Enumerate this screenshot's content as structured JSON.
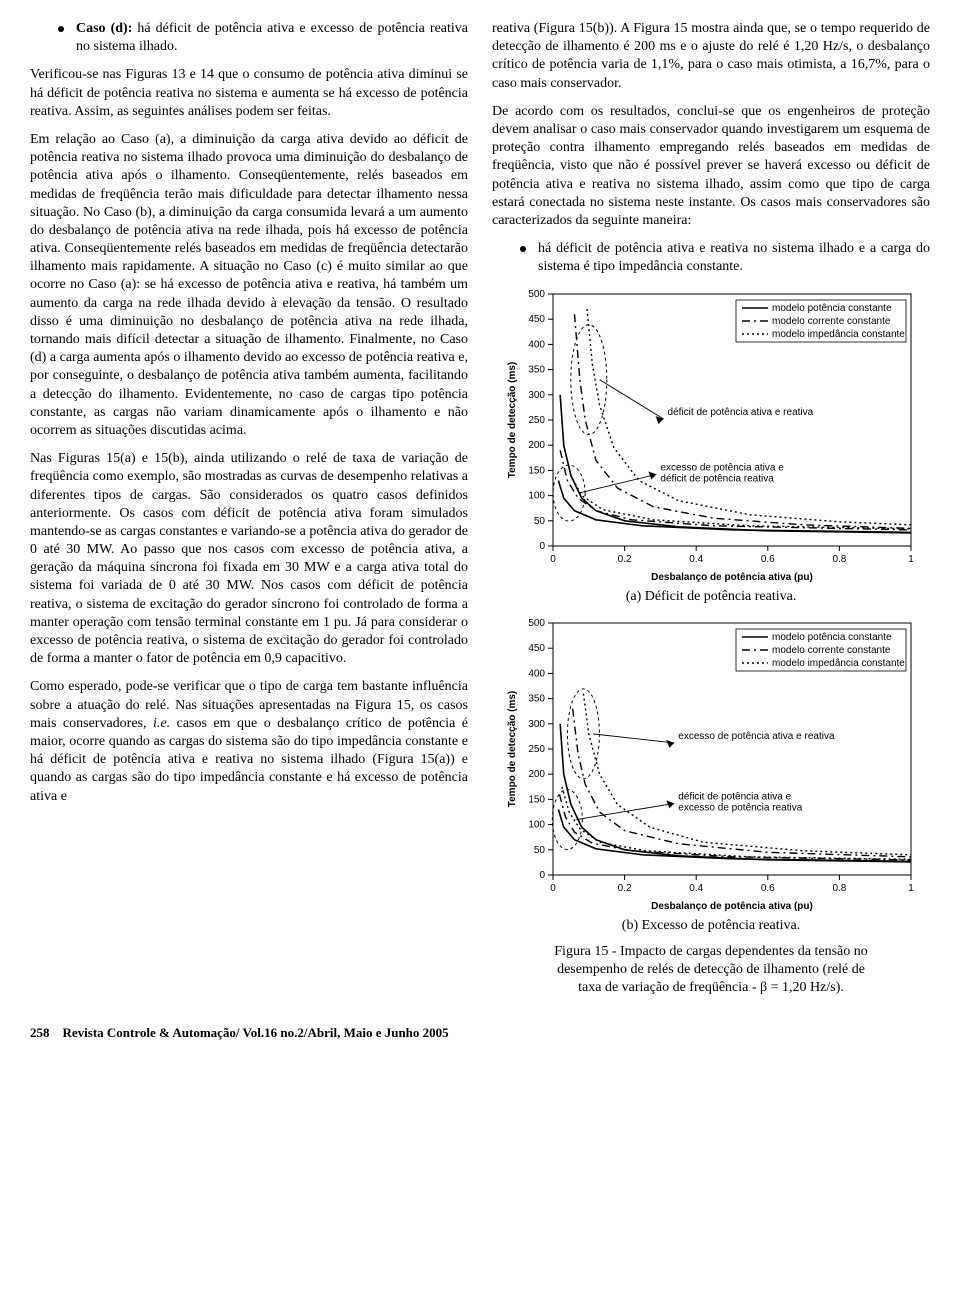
{
  "left": {
    "caso_d_label": "Caso (d):",
    "caso_d_text": " há déficit de potência ativa e excesso de potência reativa no sistema ilhado.",
    "p1": "Verificou-se nas Figuras 13 e 14 que o consumo de potência ativa diminui se há déficit de potência reativa no sistema e aumenta se há excesso de potência reativa. Assim, as seguintes análises podem ser feitas.",
    "p2": "Em relação ao Caso (a), a diminuição da carga ativa devido ao déficit de potência reativa no sistema ilhado provoca uma diminuição do desbalanço de potência ativa após o ilhamento. Conseqüentemente, relés baseados em medidas de freqüência terão mais dificuldade para detectar ilhamento nessa situação. No Caso (b), a diminuição da carga consumida levará a um aumento do desbalanço de potência ativa na rede ilhada, pois há excesso de potência ativa. Conseqüentemente relés baseados em medidas de freqüência detectarão ilhamento mais rapidamente. A situação no Caso (c) é muito similar ao que ocorre no Caso (a): se há excesso de potência ativa e reativa, há também um aumento da carga na rede ilhada devido à elevação da tensão. O resultado disso é uma diminuição no desbalanço de potência ativa na rede ilhada, tornando mais difícil detectar a situação de ilhamento. Finalmente, no Caso (d) a carga aumenta após o ilhamento devido ao excesso de potência reativa e, por conseguinte, o desbalanço de potência ativa também aumenta, facilitando a detecção do ilhamento. Evidentemente, no caso de cargas tipo potência constante, as cargas não variam dinamicamente após o ilhamento e não ocorrem as situações discutidas acima.",
    "p3": "Nas Figuras 15(a) e 15(b), ainda utilizando o relé de taxa de variação de freqüência como exemplo, são mostradas as curvas de desempenho relativas a diferentes tipos de cargas. São considerados os quatro casos definidos anteriormente. Os casos com déficit de potência ativa foram simulados mantendo-se as cargas constantes e variando-se a potência ativa do gerador de 0 até 30 MW. Ao passo que nos casos com excesso de potência ativa, a geração da máquina síncrona foi fixada em 30 MW e a carga ativa total do sistema foi variada de 0 até 30 MW. Nos casos com déficit de potência reativa, o sistema de excitação do gerador síncrono foi controlado de forma a manter operação com tensão terminal constante em 1 pu. Já para considerar o excesso de potência reativa, o sistema de excitação do gerador foi controlado de forma a manter o fator de potência em 0,9 capacitivo.",
    "p4_a": "Como esperado, pode-se verificar que o tipo de carga tem bastante influência sobre a atuação do relé. Nas situações apresentadas na Figura 15, os casos mais conservadores, ",
    "p4_i": "i.e.",
    "p4_b": " casos em que o desbalanço crítico de potência é maior, ocorre quando as cargas do sistema são do tipo impedância constante e há déficit de potência ativa e reativa no sistema ilhado (Figura 15(a)) e quando as cargas são do tipo impedância constante e há excesso de potência ativa e"
  },
  "right": {
    "p1": "reativa (Figura 15(b)). A Figura 15 mostra ainda que, se o tempo requerido de detecção de ilhamento é 200 ms e o ajuste do relé é 1,20 Hz/s, o desbalanço crítico de potência varia de 1,1%, para o caso mais otimista, a 16,7%, para o caso mais conservador.",
    "p2": "De acordo com os resultados, conclui-se que os engenheiros de proteção devem analisar o caso mais conservador quando investigarem um esquema de proteção contra ilhamento empregando relés baseados em medidas de freqüência, visto que não é possível prever se haverá excesso ou déficit de potência ativa e reativa no sistema ilhado, assim como que tipo de carga estará conectada no sistema neste instante. Os casos mais conservadores são caracterizados da seguinte maneira:",
    "bullet": "há déficit de potência ativa e reativa no sistema ilhado e a carga do sistema é tipo impedância constante.",
    "chart_a": {
      "type": "line",
      "xlim": [
        0,
        1
      ],
      "ylim": [
        0,
        500
      ],
      "xticks": [
        0,
        0.2,
        0.4,
        0.6,
        0.8,
        1
      ],
      "yticks": [
        0,
        50,
        100,
        150,
        200,
        250,
        300,
        350,
        400,
        450,
        500
      ],
      "xlabel": "Desbalanço de potência ativa (pu)",
      "ylabel": "Tempo de detecção (ms)",
      "legend": [
        {
          "label": "modelo potência constante",
          "style": "solid"
        },
        {
          "label": "modelo corrente constante",
          "style": "dashdot"
        },
        {
          "label": "modelo impedância constante",
          "style": "dot"
        }
      ],
      "curves": {
        "solid_1": [
          [
            0.02,
            300
          ],
          [
            0.03,
            200
          ],
          [
            0.05,
            140
          ],
          [
            0.08,
            95
          ],
          [
            0.12,
            70
          ],
          [
            0.2,
            50
          ],
          [
            0.35,
            38
          ],
          [
            0.6,
            30
          ],
          [
            1,
            26
          ]
        ],
        "solid_2": [
          [
            0.015,
            130
          ],
          [
            0.03,
            95
          ],
          [
            0.06,
            70
          ],
          [
            0.12,
            52
          ],
          [
            0.25,
            40
          ],
          [
            0.5,
            32
          ],
          [
            1,
            27
          ]
        ],
        "dashdot_1": [
          [
            0.06,
            460
          ],
          [
            0.075,
            330
          ],
          [
            0.09,
            250
          ],
          [
            0.12,
            170
          ],
          [
            0.18,
            115
          ],
          [
            0.28,
            78
          ],
          [
            0.45,
            55
          ],
          [
            0.7,
            42
          ],
          [
            1,
            35
          ]
        ],
        "dashdot_2": [
          [
            0.02,
            190
          ],
          [
            0.04,
            130
          ],
          [
            0.07,
            95
          ],
          [
            0.12,
            70
          ],
          [
            0.22,
            52
          ],
          [
            0.45,
            40
          ],
          [
            1,
            32
          ]
        ],
        "dot_1": [
          [
            0.095,
            470
          ],
          [
            0.11,
            360
          ],
          [
            0.13,
            280
          ],
          [
            0.17,
            195
          ],
          [
            0.24,
            130
          ],
          [
            0.35,
            90
          ],
          [
            0.55,
            62
          ],
          [
            0.8,
            48
          ],
          [
            1,
            42
          ]
        ],
        "dot_2": [
          [
            0.03,
            200
          ],
          [
            0.05,
            140
          ],
          [
            0.08,
            100
          ],
          [
            0.14,
            72
          ],
          [
            0.28,
            52
          ],
          [
            0.55,
            40
          ],
          [
            1,
            34
          ]
        ]
      },
      "annot1": "déficit de potência ativa e reativa",
      "annot2a": "excesso de potência ativa e",
      "annot2b": "déficit de potência reativa",
      "caption": "(a) Déficit de potência reativa."
    },
    "chart_b": {
      "type": "line",
      "xlim": [
        0,
        1
      ],
      "ylim": [
        0,
        500
      ],
      "xticks": [
        0,
        0.2,
        0.4,
        0.6,
        0.8,
        1
      ],
      "yticks": [
        0,
        50,
        100,
        150,
        200,
        250,
        300,
        350,
        400,
        450,
        500
      ],
      "xlabel": "Desbalanço de potência ativa (pu)",
      "ylabel": "Tempo de detecção (ms)",
      "legend": [
        {
          "label": "modelo potência constante",
          "style": "solid"
        },
        {
          "label": "modelo corrente constante",
          "style": "dashdot"
        },
        {
          "label": "modelo impedância constante",
          "style": "dot"
        }
      ],
      "curves": {
        "solid_1": [
          [
            0.02,
            300
          ],
          [
            0.03,
            200
          ],
          [
            0.05,
            140
          ],
          [
            0.08,
            95
          ],
          [
            0.12,
            70
          ],
          [
            0.2,
            50
          ],
          [
            0.35,
            38
          ],
          [
            0.6,
            30
          ],
          [
            1,
            26
          ]
        ],
        "solid_2": [
          [
            0.015,
            130
          ],
          [
            0.03,
            95
          ],
          [
            0.06,
            70
          ],
          [
            0.12,
            52
          ],
          [
            0.25,
            40
          ],
          [
            0.5,
            32
          ],
          [
            1,
            27
          ]
        ],
        "dashdot_1": [
          [
            0.055,
            330
          ],
          [
            0.07,
            240
          ],
          [
            0.09,
            180
          ],
          [
            0.13,
            125
          ],
          [
            0.2,
            88
          ],
          [
            0.35,
            62
          ],
          [
            0.6,
            45
          ],
          [
            1,
            36
          ]
        ],
        "dashdot_2": [
          [
            0.018,
            160
          ],
          [
            0.035,
            115
          ],
          [
            0.06,
            85
          ],
          [
            0.11,
            63
          ],
          [
            0.22,
            48
          ],
          [
            0.5,
            36
          ],
          [
            1,
            30
          ]
        ],
        "dot_1": [
          [
            0.085,
            360
          ],
          [
            0.1,
            280
          ],
          [
            0.13,
            200
          ],
          [
            0.18,
            140
          ],
          [
            0.27,
            95
          ],
          [
            0.42,
            65
          ],
          [
            0.7,
            48
          ],
          [
            1,
            40
          ]
        ],
        "dot_2": [
          [
            0.025,
            175
          ],
          [
            0.045,
            125
          ],
          [
            0.075,
            92
          ],
          [
            0.13,
            65
          ],
          [
            0.26,
            48
          ],
          [
            0.55,
            36
          ],
          [
            1,
            31
          ]
        ]
      },
      "annot1": "excesso de potência ativa e reativa",
      "annot2a": "déficit de potência ativa e",
      "annot2b": "excesso de potência reativa",
      "caption": "(b) Excesso de potência reativa."
    },
    "fig_caption_1": "Figura 15 - Impacto de cargas dependentes da tensão no",
    "fig_caption_2": "desempenho de relés de detecção de ilhamento (relé de",
    "fig_caption_3": "taxa de variação de freqüência - β = 1,20 Hz/s)."
  },
  "footer": {
    "page": "258",
    "journal": "Revista Controle & Automação/ Vol.16 no.2/Abril, Maio e Junho 2005"
  },
  "style": {
    "line_color": "#000000",
    "bg": "#ffffff",
    "grid": "#000000",
    "legend_box_stroke": "#000000",
    "line_widths": {
      "solid": 1.6,
      "dashdot": 1.4,
      "dot": 1.4
    }
  }
}
